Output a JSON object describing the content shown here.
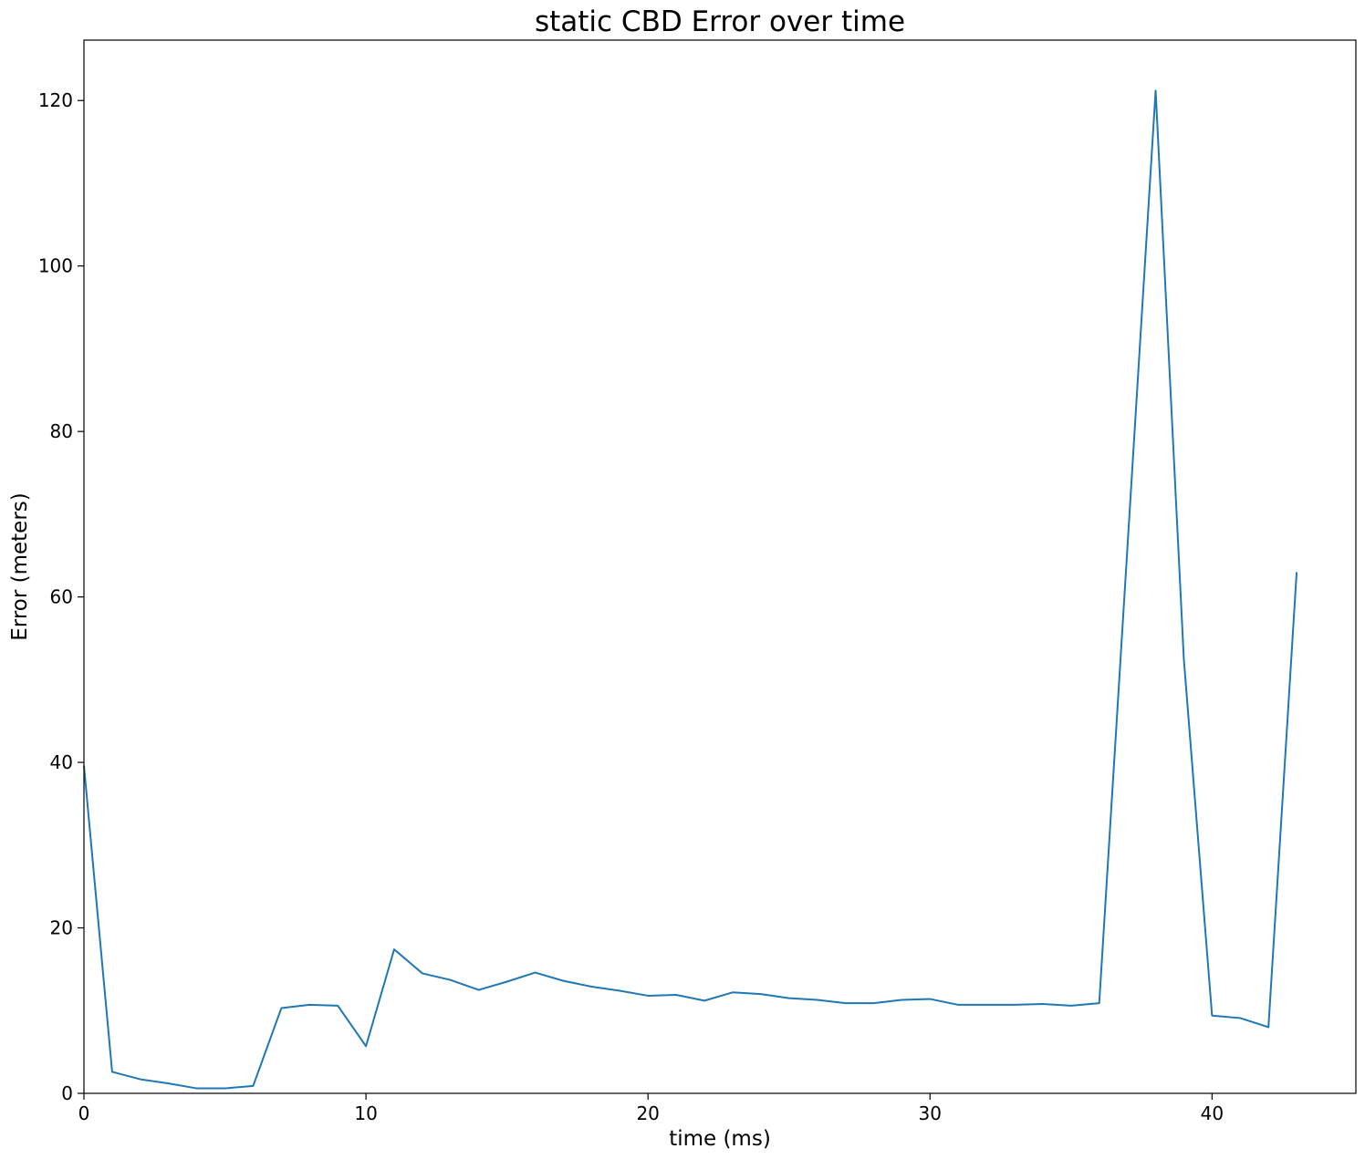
{
  "chart_data": {
    "type": "line",
    "title": "static CBD Error over time",
    "xlabel": "time (ms)",
    "ylabel": "Error (meters)",
    "xlim": [
      0,
      45.1
    ],
    "ylim": [
      0,
      127.3
    ],
    "xticks": [
      0,
      10,
      20,
      30,
      40
    ],
    "yticks": [
      0,
      20,
      40,
      60,
      80,
      100,
      120
    ],
    "grid": false,
    "series": [
      {
        "color": "#1f77b4",
        "x": [
          0,
          1,
          2,
          3,
          4,
          5,
          6,
          7,
          8,
          9,
          10,
          11,
          12,
          13,
          14,
          15,
          16,
          17,
          18,
          19,
          20,
          21,
          22,
          23,
          24,
          25,
          26,
          27,
          28,
          29,
          30,
          31,
          32,
          33,
          34,
          35,
          36,
          37,
          38,
          39,
          40,
          41,
          42,
          43
        ],
        "y": [
          39.6,
          2.6,
          1.7,
          1.2,
          0.6,
          0.6,
          0.9,
          10.3,
          10.7,
          10.6,
          5.7,
          17.4,
          14.5,
          13.7,
          12.5,
          13.5,
          14.6,
          13.6,
          12.9,
          12.4,
          11.8,
          11.9,
          11.2,
          12.2,
          12.0,
          11.5,
          11.3,
          10.9,
          10.9,
          11.3,
          11.4,
          10.7,
          10.7,
          10.7,
          10.8,
          10.6,
          10.9,
          66.0,
          121.2,
          52.5,
          9.4,
          9.1,
          8.0,
          63.0
        ]
      }
    ]
  }
}
